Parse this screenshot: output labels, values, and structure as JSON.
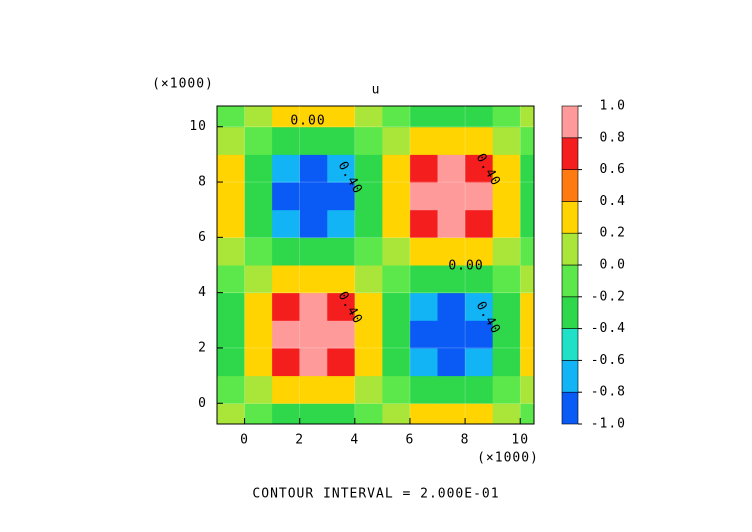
{
  "chart_data": {
    "type": "contour",
    "title": "u",
    "x_multiplier": "(×1000)",
    "y_multiplier": "(×1000)",
    "footer": "CONTOUR INTERVAL = 2.000E-01",
    "xlim": [
      -1,
      10.5
    ],
    "ylim": [
      -0.75,
      10.75
    ],
    "xticks": [
      0,
      2,
      4,
      6,
      8,
      10
    ],
    "yticks": [
      0,
      2,
      4,
      6,
      8,
      10
    ],
    "x": [
      -0.5,
      0.5,
      1.5,
      2.5,
      3.5,
      4.5,
      5.5,
      6.5,
      7.5,
      8.5,
      9.5,
      10.5
    ],
    "y": [
      -0.5,
      0.5,
      1.5,
      2.5,
      3.5,
      4.5,
      5.5,
      6.5,
      7.5,
      8.5,
      9.5,
      10.5
    ],
    "z": [
      [
        0.1,
        -0.1,
        -0.25,
        -0.31,
        -0.25,
        -0.1,
        0.1,
        0.25,
        0.31,
        0.25,
        0.1,
        -0.1
      ],
      [
        -0.1,
        0.1,
        0.25,
        0.31,
        0.25,
        0.1,
        -0.1,
        -0.25,
        -0.31,
        -0.25,
        -0.1,
        0.1
      ],
      [
        -0.25,
        0.25,
        0.66,
        0.81,
        0.66,
        0.25,
        -0.25,
        -0.66,
        -0.81,
        -0.66,
        -0.25,
        0.25
      ],
      [
        -0.31,
        0.31,
        0.81,
        1,
        0.81,
        0.31,
        -0.31,
        -0.81,
        -1,
        -0.81,
        -0.31,
        0.31
      ],
      [
        -0.25,
        0.25,
        0.66,
        0.81,
        0.66,
        0.25,
        -0.25,
        -0.66,
        -0.81,
        -0.66,
        -0.25,
        0.25
      ],
      [
        -0.1,
        0.1,
        0.25,
        0.31,
        0.25,
        0.1,
        -0.1,
        -0.25,
        -0.31,
        -0.25,
        -0.1,
        0.1
      ],
      [
        0.1,
        -0.1,
        -0.25,
        -0.31,
        -0.25,
        -0.1,
        0.1,
        0.25,
        0.31,
        0.25,
        0.1,
        -0.1
      ],
      [
        0.25,
        -0.25,
        -0.66,
        -0.81,
        -0.66,
        -0.25,
        0.25,
        0.66,
        0.81,
        0.66,
        0.25,
        -0.25
      ],
      [
        0.31,
        -0.31,
        -0.81,
        -1,
        -0.81,
        -0.31,
        0.31,
        0.81,
        1,
        0.81,
        0.31,
        -0.31
      ],
      [
        0.25,
        -0.25,
        -0.66,
        -0.81,
        -0.66,
        -0.25,
        0.25,
        0.66,
        0.81,
        0.66,
        0.25,
        -0.25
      ],
      [
        0.1,
        -0.1,
        -0.25,
        -0.31,
        -0.25,
        -0.1,
        0.1,
        0.25,
        0.31,
        0.25,
        0.1,
        -0.1
      ],
      [
        -0.1,
        0.1,
        0.25,
        0.31,
        0.25,
        0.1,
        -0.1,
        -0.25,
        -0.31,
        -0.25,
        -0.1,
        0.1
      ]
    ],
    "levels": [
      -1,
      -0.8,
      -0.6,
      -0.4,
      -0.2,
      0,
      0.2,
      0.4,
      0.6,
      0.8,
      1
    ],
    "colors": [
      "#0a5af5",
      "#12b4f5",
      "#20e0c8",
      "#2ed84a",
      "#5ce84a",
      "#aae63a",
      "#ffd400",
      "#ff7a10",
      "#f51e1e",
      "#ff9a9a"
    ],
    "colorbar_ticks": [
      {
        "value": 1,
        "label": "1.0"
      },
      {
        "value": 0.8,
        "label": "0.8"
      },
      {
        "value": 0.6,
        "label": "0.6"
      },
      {
        "value": 0.4,
        "label": "0.4"
      },
      {
        "value": 0.2,
        "label": "0.2"
      },
      {
        "value": 0,
        "label": "0.0"
      },
      {
        "value": -0.2,
        "label": "-0.2"
      },
      {
        "value": -0.4,
        "label": "-0.4"
      },
      {
        "value": -0.6,
        "label": "-0.6"
      },
      {
        "value": -0.8,
        "label": "-0.8"
      },
      {
        "value": -1,
        "label": "-1.0"
      }
    ],
    "contour_labels": [
      "0.00",
      "0.40",
      "0.40",
      "0.00",
      "0.40",
      "0.40"
    ]
  }
}
